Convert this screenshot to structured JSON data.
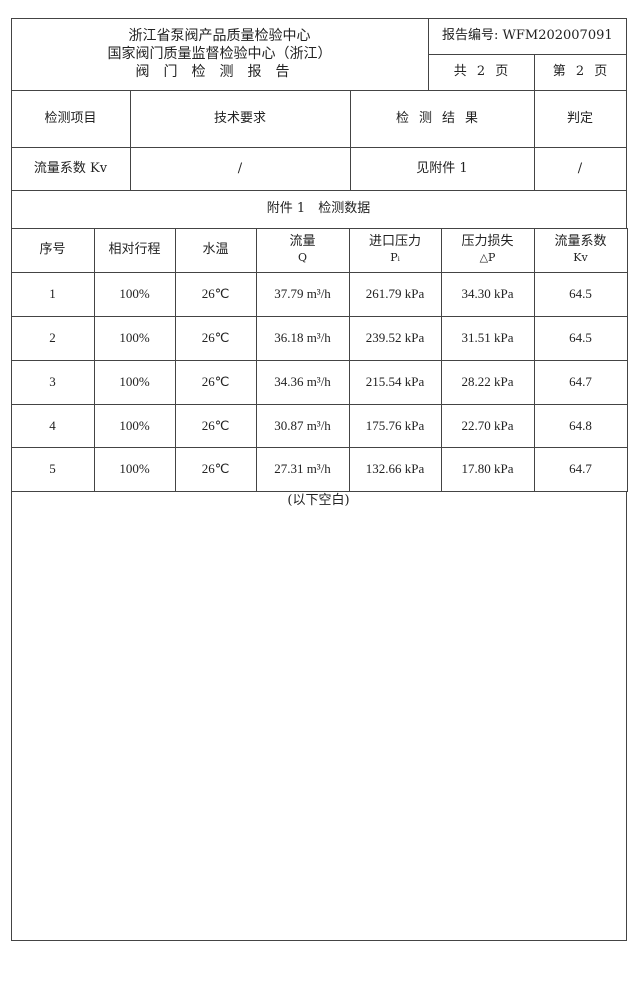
{
  "header": {
    "org_line1": "浙江省泵阀产品质量检验中心",
    "org_line2": "国家阀门质量监督检验中心（浙江）",
    "report_title": "阀门检测报告",
    "report_no": "报告编号: WFM202007091",
    "total_pages": "共 2 页",
    "current_page": "第 2 页"
  },
  "summary": {
    "columns": [
      "检测项目",
      "技术要求",
      "检测结果",
      "判定"
    ],
    "row": [
      "流量系数 Kv",
      "/",
      "见附件 1",
      "/"
    ]
  },
  "annex": {
    "title": "附件 1　检测数据",
    "columns": [
      {
        "label": "序号",
        "sub": ""
      },
      {
        "label": "相对行程",
        "sub": ""
      },
      {
        "label": "水温",
        "sub": ""
      },
      {
        "label": "流量",
        "sub": "Q"
      },
      {
        "label": "进口压力",
        "sub": "Pᵢ"
      },
      {
        "label": "压力损失",
        "sub": "△P"
      },
      {
        "label": "流量系数",
        "sub": "Kv"
      }
    ],
    "rows": [
      [
        "1",
        "100%",
        "26℃",
        "37.79 m³/h",
        "261.79 kPa",
        "34.30 kPa",
        "64.5"
      ],
      [
        "2",
        "100%",
        "26℃",
        "36.18 m³/h",
        "239.52 kPa",
        "31.51 kPa",
        "64.5"
      ],
      [
        "3",
        "100%",
        "26℃",
        "34.36 m³/h",
        "215.54 kPa",
        "28.22 kPa",
        "64.7"
      ],
      [
        "4",
        "100%",
        "26℃",
        "30.87 m³/h",
        "175.76 kPa",
        "22.70 kPa",
        "64.8"
      ],
      [
        "5",
        "100%",
        "26℃",
        "27.31 m³/h",
        "132.66 kPa",
        "17.80 kPa",
        "64.7"
      ]
    ],
    "end_note": "(以下空白)"
  }
}
